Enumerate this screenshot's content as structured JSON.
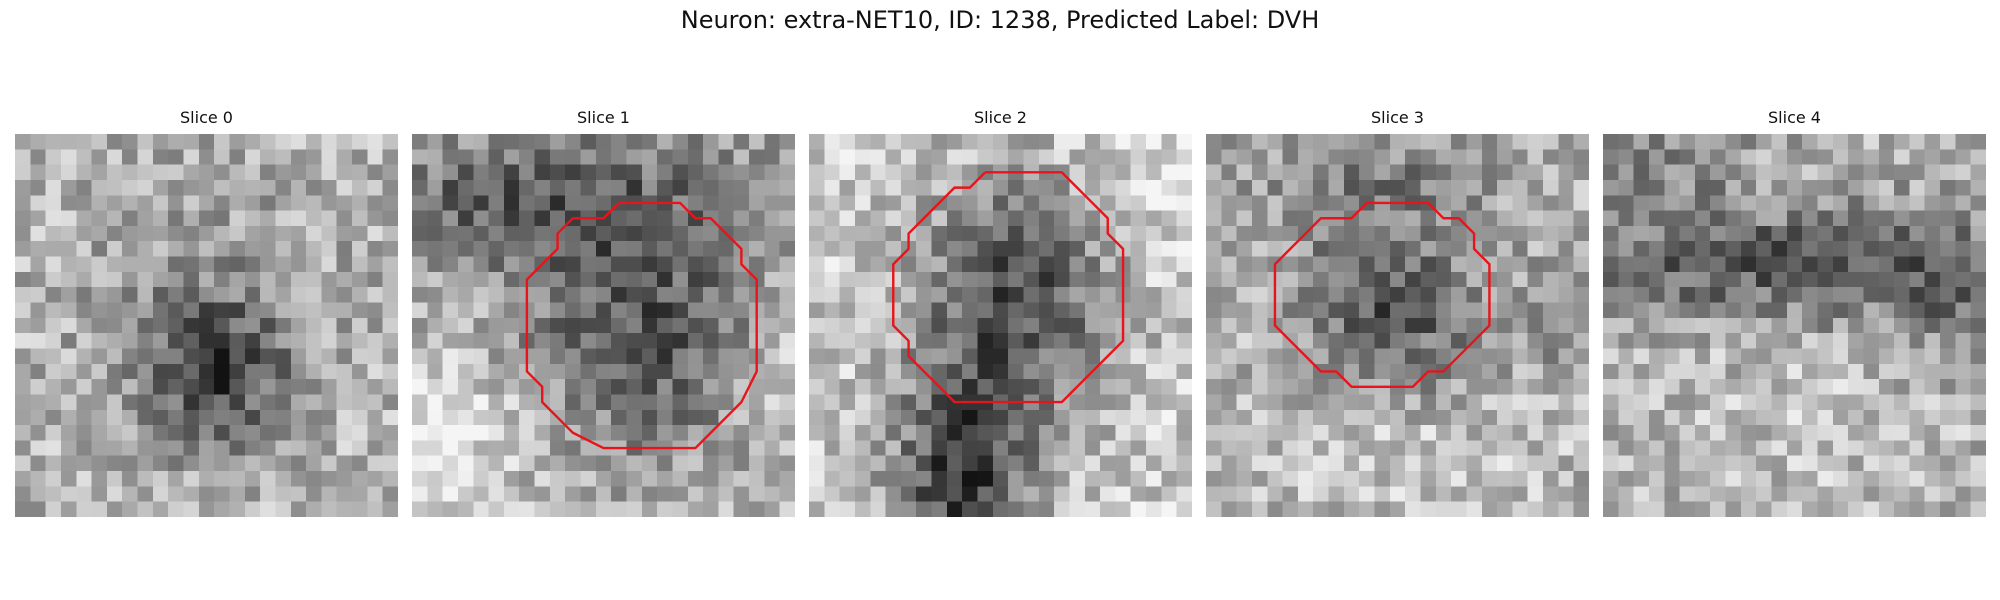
{
  "figure": {
    "title": "Neuron: extra-NET10, ID: 1238, Predicted Label: DVH"
  },
  "colormap": "gray",
  "contour_color": "#e8141b",
  "slices": [
    {
      "title": "Slice 0",
      "has_contour": false,
      "contour": []
    },
    {
      "title": "Slice 1",
      "has_contour": true,
      "contour": [
        [
          13.5,
          4.5
        ],
        [
          17.5,
          4.5
        ],
        [
          18.5,
          5.5
        ],
        [
          19.5,
          5.5
        ],
        [
          20.5,
          6.5
        ],
        [
          21.5,
          7.5
        ],
        [
          21.5,
          8.5
        ],
        [
          22.5,
          9.5
        ],
        [
          22.5,
          12.5
        ],
        [
          22.5,
          15.5
        ],
        [
          21.5,
          17.5
        ],
        [
          20.5,
          18.5
        ],
        [
          19.5,
          19.5
        ],
        [
          18.5,
          20.5
        ],
        [
          13.5,
          20.5
        ],
        [
          12.5,
          20.5
        ],
        [
          10.5,
          19.5
        ],
        [
          9.5,
          18.5
        ],
        [
          8.5,
          17.5
        ],
        [
          8.5,
          16.5
        ],
        [
          7.5,
          15.5
        ],
        [
          7.5,
          10.5
        ],
        [
          7.5,
          9.5
        ],
        [
          8.5,
          8.5
        ],
        [
          9.5,
          7.5
        ],
        [
          9.5,
          6.5
        ],
        [
          10.5,
          5.5
        ],
        [
          12.5,
          5.5
        ],
        [
          13.5,
          4.5
        ]
      ]
    },
    {
      "title": "Slice 2",
      "has_contour": true,
      "contour": [
        [
          11.5,
          2.5
        ],
        [
          16.5,
          2.5
        ],
        [
          17.5,
          3.5
        ],
        [
          18.5,
          4.5
        ],
        [
          19.5,
          5.5
        ],
        [
          19.5,
          6.5
        ],
        [
          20.5,
          7.5
        ],
        [
          20.5,
          11.5
        ],
        [
          20.5,
          13.5
        ],
        [
          19.5,
          14.5
        ],
        [
          18.5,
          15.5
        ],
        [
          17.5,
          16.5
        ],
        [
          16.5,
          17.5
        ],
        [
          13.5,
          17.5
        ],
        [
          9.5,
          17.5
        ],
        [
          8.5,
          16.5
        ],
        [
          7.5,
          15.5
        ],
        [
          6.5,
          14.5
        ],
        [
          6.5,
          13.5
        ],
        [
          5.5,
          12.5
        ],
        [
          5.5,
          9.5
        ],
        [
          5.5,
          8.5
        ],
        [
          6.5,
          7.5
        ],
        [
          6.5,
          6.5
        ],
        [
          7.5,
          5.5
        ],
        [
          8.5,
          4.5
        ],
        [
          9.5,
          3.5
        ],
        [
          10.5,
          3.5
        ],
        [
          11.5,
          2.5
        ]
      ]
    },
    {
      "title": "Slice 3",
      "has_contour": true,
      "contour": [
        [
          11.5,
          4.5
        ],
        [
          14.5,
          4.5
        ],
        [
          15.5,
          5.5
        ],
        [
          16.5,
          5.5
        ],
        [
          17.5,
          6.5
        ],
        [
          17.5,
          7.5
        ],
        [
          18.5,
          8.5
        ],
        [
          18.5,
          12.5
        ],
        [
          17.5,
          13.5
        ],
        [
          16.5,
          14.5
        ],
        [
          15.5,
          15.5
        ],
        [
          14.5,
          15.5
        ],
        [
          13.5,
          16.5
        ],
        [
          9.5,
          16.5
        ],
        [
          8.5,
          15.5
        ],
        [
          7.5,
          15.5
        ],
        [
          6.5,
          14.5
        ],
        [
          5.5,
          13.5
        ],
        [
          4.5,
          12.5
        ],
        [
          4.5,
          8.5
        ],
        [
          5.5,
          7.5
        ],
        [
          6.5,
          6.5
        ],
        [
          7.5,
          5.5
        ],
        [
          9.5,
          5.5
        ],
        [
          10.5,
          4.5
        ],
        [
          11.5,
          4.5
        ]
      ]
    },
    {
      "title": "Slice 4",
      "has_contour": false,
      "contour": []
    }
  ]
}
